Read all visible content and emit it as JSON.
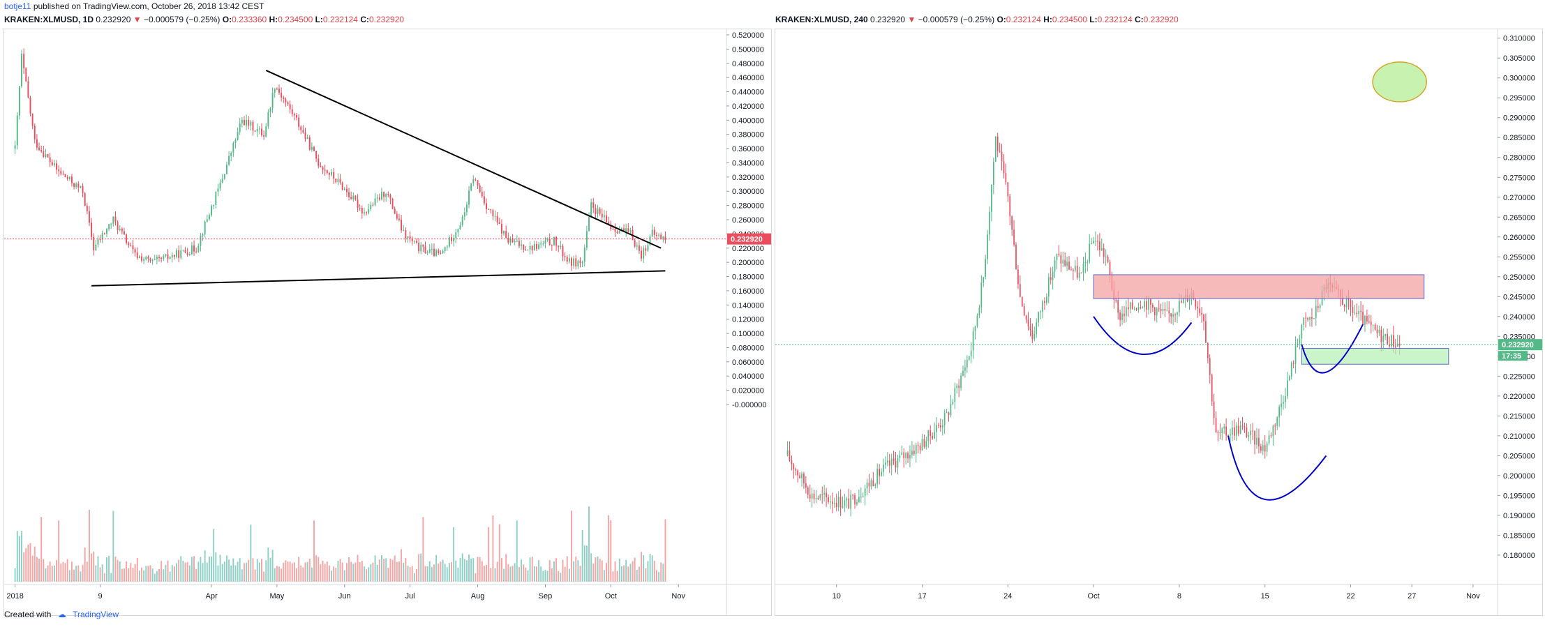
{
  "header": {
    "publisher": "botje11",
    "published_text": "published on TradingView.com, October 26, 2018 13:42 CEST"
  },
  "left_ticker": {
    "symbol": "KRAKEN:XLMUSD, 1D",
    "price": "0.232920",
    "change": "−0.000579 (−0.25%)",
    "open_label": "O:",
    "open": "0.233360",
    "high_label": "H:",
    "high": "0.234500",
    "low_label": "L:",
    "low": "0.232124",
    "close_label": "C:",
    "close": "0.232920"
  },
  "right_ticker": {
    "symbol": "KRAKEN:XLMUSD, 240",
    "price": "0.232920",
    "change": "−0.000579 (−0.25%)",
    "open_label": "O:",
    "open": "0.232124",
    "high_label": "H:",
    "high": "0.234500",
    "low_label": "L:",
    "low": "0.232124",
    "close_label": "C:",
    "close": "0.232920"
  },
  "footer": {
    "created_with": "Created with",
    "brand": "TradingView"
  },
  "colors": {
    "up": "#53b987",
    "down": "#eb4d5c",
    "vol_up": "#8fd0c6",
    "vol_down": "#f6a4a4",
    "price_badge": "#eb4d5c",
    "price_badge_right": "#53b987"
  },
  "chart_data": [
    {
      "type": "candlestick",
      "title": "KRAKEN:XLMUSD, 1D",
      "x_ticks": [
        "2018",
        "9",
        "Apr",
        "May",
        "Jun",
        "Jul",
        "Aug",
        "Sep",
        "Oct",
        "Nov"
      ],
      "y_ticks": [
        "0.520000",
        "0.500000",
        "0.480000",
        "0.460000",
        "0.440000",
        "0.420000",
        "0.400000",
        "0.380000",
        "0.360000",
        "0.340000",
        "0.320000",
        "0.300000",
        "0.280000",
        "0.260000",
        "0.240000",
        "0.220000",
        "0.200000",
        "0.180000",
        "0.160000",
        "0.140000",
        "0.120000",
        "0.100000",
        "0.080000",
        "0.060000",
        "0.040000",
        "0.020000",
        "-0.000000"
      ],
      "ylim": [
        0,
        0.52
      ],
      "last_price_label": "0.232920",
      "close_path": [
        {
          "x": "2018-01-01",
          "y": 0.36
        },
        {
          "x": "2018-01-04",
          "y": 0.49
        },
        {
          "x": "2018-01-10",
          "y": 0.37
        },
        {
          "x": "2018-01-20",
          "y": 0.33
        },
        {
          "x": "2018-02-01",
          "y": 0.3
        },
        {
          "x": "2018-02-06",
          "y": 0.22
        },
        {
          "x": "2018-02-15",
          "y": 0.26
        },
        {
          "x": "2018-02-25",
          "y": 0.21
        },
        {
          "x": "2018-03-05",
          "y": 0.2
        },
        {
          "x": "2018-03-15",
          "y": 0.21
        },
        {
          "x": "2018-03-25",
          "y": 0.22
        },
        {
          "x": "2018-04-05",
          "y": 0.31
        },
        {
          "x": "2018-04-15",
          "y": 0.4
        },
        {
          "x": "2018-04-25",
          "y": 0.38
        },
        {
          "x": "2018-04-30",
          "y": 0.45
        },
        {
          "x": "2018-05-10",
          "y": 0.4
        },
        {
          "x": "2018-05-20",
          "y": 0.34
        },
        {
          "x": "2018-05-30",
          "y": 0.31
        },
        {
          "x": "2018-06-10",
          "y": 0.27
        },
        {
          "x": "2018-06-20",
          "y": 0.3
        },
        {
          "x": "2018-06-28",
          "y": 0.24
        },
        {
          "x": "2018-07-05",
          "y": 0.22
        },
        {
          "x": "2018-07-15",
          "y": 0.21
        },
        {
          "x": "2018-07-25",
          "y": 0.26
        },
        {
          "x": "2018-07-30",
          "y": 0.32
        },
        {
          "x": "2018-08-05",
          "y": 0.28
        },
        {
          "x": "2018-08-15",
          "y": 0.23
        },
        {
          "x": "2018-08-25",
          "y": 0.22
        },
        {
          "x": "2018-09-05",
          "y": 0.23
        },
        {
          "x": "2018-09-12",
          "y": 0.2
        },
        {
          "x": "2018-09-18",
          "y": 0.2
        },
        {
          "x": "2018-09-22",
          "y": 0.28
        },
        {
          "x": "2018-10-01",
          "y": 0.25
        },
        {
          "x": "2018-10-10",
          "y": 0.24
        },
        {
          "x": "2018-10-15",
          "y": 0.21
        },
        {
          "x": "2018-10-20",
          "y": 0.24
        },
        {
          "x": "2018-10-26",
          "y": 0.2329
        }
      ],
      "annotations": [
        {
          "type": "trendline",
          "from": {
            "x": "2018-04-26",
            "y": 0.47
          },
          "to": {
            "x": "2018-10-24",
            "y": 0.22
          }
        },
        {
          "type": "trendline",
          "from": {
            "x": "2018-02-05",
            "y": 0.167
          },
          "to": {
            "x": "2018-10-26",
            "y": 0.188
          }
        }
      ],
      "volume": {
        "ylim": [
          0,
          0.13
        ]
      }
    },
    {
      "type": "candlestick",
      "title": "KRAKEN:XLMUSD, 240",
      "x_ticks": [
        "10",
        "17",
        "24",
        "Oct",
        "8",
        "15",
        "22",
        "27",
        "Nov"
      ],
      "y_ticks": [
        "0.310000",
        "0.305000",
        "0.300000",
        "0.295000",
        "0.290000",
        "0.285000",
        "0.280000",
        "0.275000",
        "0.270000",
        "0.265000",
        "0.260000",
        "0.255000",
        "0.250000",
        "0.245000",
        "0.240000",
        "0.235000",
        "0.230000",
        "0.225000",
        "0.220000",
        "0.215000",
        "0.210000",
        "0.205000",
        "0.200000",
        "0.195000",
        "0.190000",
        "0.185000",
        "0.180000"
      ],
      "ylim": [
        0.177,
        0.311
      ],
      "last_price_label": "0.232920",
      "countdown_label": "17:35",
      "close_path": [
        {
          "x": "2018-09-06",
          "y": 0.205
        },
        {
          "x": "2018-09-08",
          "y": 0.195
        },
        {
          "x": "2018-09-11",
          "y": 0.193
        },
        {
          "x": "2018-09-14",
          "y": 0.202
        },
        {
          "x": "2018-09-17",
          "y": 0.208
        },
        {
          "x": "2018-09-19",
          "y": 0.215
        },
        {
          "x": "2018-09-21",
          "y": 0.232
        },
        {
          "x": "2018-09-22",
          "y": 0.25
        },
        {
          "x": "2018-09-23",
          "y": 0.285
        },
        {
          "x": "2018-09-24",
          "y": 0.27
        },
        {
          "x": "2018-09-25",
          "y": 0.245
        },
        {
          "x": "2018-09-26",
          "y": 0.235
        },
        {
          "x": "2018-09-28",
          "y": 0.255
        },
        {
          "x": "2018-09-30",
          "y": 0.25
        },
        {
          "x": "2018-10-01",
          "y": 0.26
        },
        {
          "x": "2018-10-02",
          "y": 0.255
        },
        {
          "x": "2018-10-03",
          "y": 0.24
        },
        {
          "x": "2018-10-05",
          "y": 0.244
        },
        {
          "x": "2018-10-07",
          "y": 0.24
        },
        {
          "x": "2018-10-09",
          "y": 0.246
        },
        {
          "x": "2018-10-10",
          "y": 0.24
        },
        {
          "x": "2018-10-11",
          "y": 0.21
        },
        {
          "x": "2018-10-13",
          "y": 0.212
        },
        {
          "x": "2018-10-15",
          "y": 0.207
        },
        {
          "x": "2018-10-16",
          "y": 0.215
        },
        {
          "x": "2018-10-17",
          "y": 0.225
        },
        {
          "x": "2018-10-18",
          "y": 0.238
        },
        {
          "x": "2018-10-19",
          "y": 0.24
        },
        {
          "x": "2018-10-20",
          "y": 0.248
        },
        {
          "x": "2018-10-21",
          "y": 0.245
        },
        {
          "x": "2018-10-22",
          "y": 0.242
        },
        {
          "x": "2018-10-24",
          "y": 0.236
        },
        {
          "x": "2018-10-26",
          "y": 0.2329
        }
      ],
      "annotations": [
        {
          "type": "rectangle",
          "color": "#f4a3a3",
          "x_range": [
            "2018-10-01",
            "2018-10-28"
          ],
          "y_range": [
            0.2445,
            0.2505
          ]
        },
        {
          "type": "rectangle",
          "color": "#b8f0b8",
          "x_range": [
            "2018-10-18",
            "2018-10-30"
          ],
          "y_range": [
            0.228,
            0.232
          ]
        },
        {
          "type": "ellipse",
          "color": "#c8f2b0",
          "center": {
            "x": "2018-10-26",
            "y": 0.299
          },
          "radius_x_days": 2.2,
          "radius_y": 0.005
        },
        {
          "type": "curve",
          "color": "#0000cc",
          "points": [
            {
              "x": "2018-10-01",
              "y": 0.24
            },
            {
              "x": "2018-10-05",
              "y": 0.2305
            },
            {
              "x": "2018-10-09",
              "y": 0.2385
            }
          ]
        },
        {
          "type": "curve",
          "color": "#0000cc",
          "points": [
            {
              "x": "2018-10-12",
              "y": 0.21
            },
            {
              "x": "2018-10-15",
              "y": 0.194
            },
            {
              "x": "2018-10-20",
              "y": 0.205
            }
          ]
        },
        {
          "type": "curve",
          "color": "#0000cc",
          "points": [
            {
              "x": "2018-10-18",
              "y": 0.233
            },
            {
              "x": "2018-10-20",
              "y": 0.226
            },
            {
              "x": "2018-10-23",
              "y": 0.238
            }
          ]
        }
      ]
    }
  ]
}
